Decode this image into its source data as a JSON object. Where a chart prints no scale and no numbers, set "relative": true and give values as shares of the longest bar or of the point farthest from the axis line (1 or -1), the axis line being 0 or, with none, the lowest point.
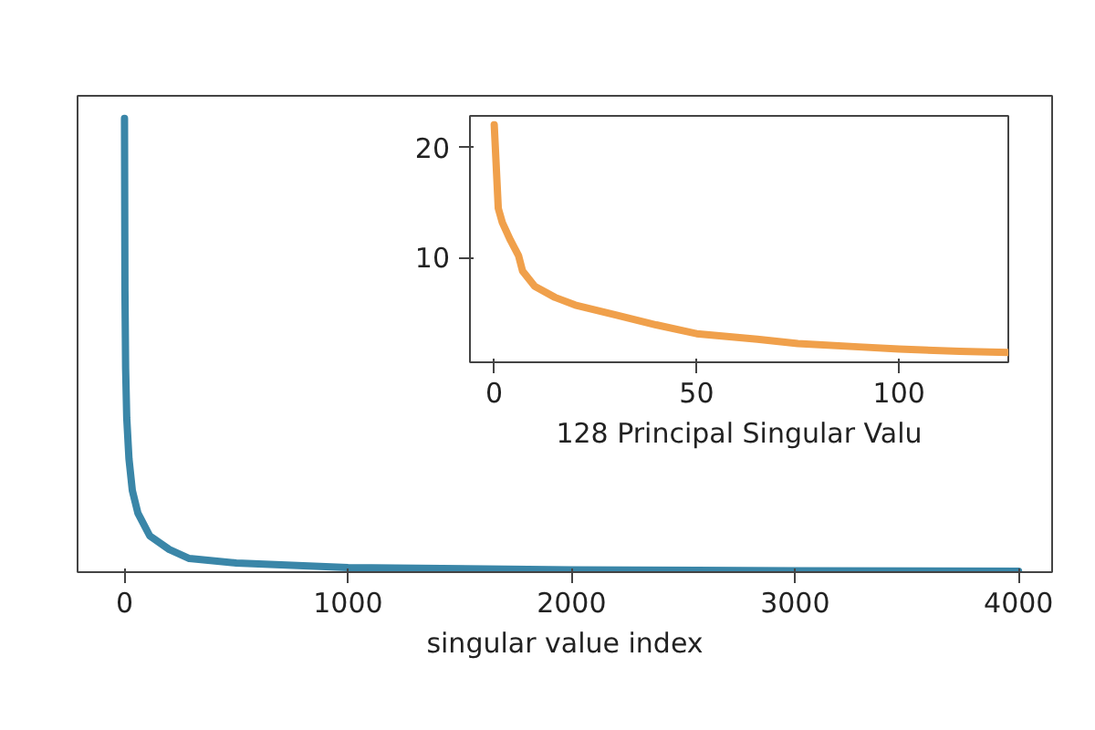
{
  "chart_data": [
    {
      "type": "line",
      "xlabel": "singular value index",
      "relative": true,
      "xlim": [
        -210,
        4150
      ],
      "xticks": [
        0,
        1000,
        2000,
        3000,
        4000
      ],
      "tick_labels": "x",
      "grid": false,
      "series": [
        {
          "color": "#3a86a8",
          "x": [
            0,
            2,
            5,
            10,
            20,
            35,
            60,
            113,
            200,
            290,
            500,
            1000,
            2000,
            3000,
            4000
          ],
          "values": [
            1,
            0.62,
            0.45,
            0.34,
            0.25,
            0.18,
            0.13,
            0.08,
            0.05,
            0.03,
            0.02,
            0.01,
            0.005,
            0.003,
            0.002
          ]
        }
      ]
    },
    {
      "type": "line",
      "xlabel": "128 Principal Singular Valu",
      "xlim": [
        -6,
        127
      ],
      "ylim": [
        0.5,
        22.9
      ],
      "xticks": [
        0,
        50,
        100
      ],
      "yticks": [
        10,
        20
      ],
      "grid": false,
      "series": [
        {
          "color": "#f0a04b",
          "x": [
            0,
            1,
            2,
            4,
            6,
            7,
            10,
            15,
            20,
            30,
            40,
            50,
            65,
            75,
            90,
            100,
            115,
            127
          ],
          "values": [
            22.1,
            14.5,
            13.2,
            11.6,
            10.2,
            8.8,
            7.4,
            6.4,
            5.7,
            4.8,
            3.9,
            3.1,
            2.6,
            2.2,
            1.9,
            1.7,
            1.5,
            1.4
          ]
        }
      ]
    }
  ]
}
